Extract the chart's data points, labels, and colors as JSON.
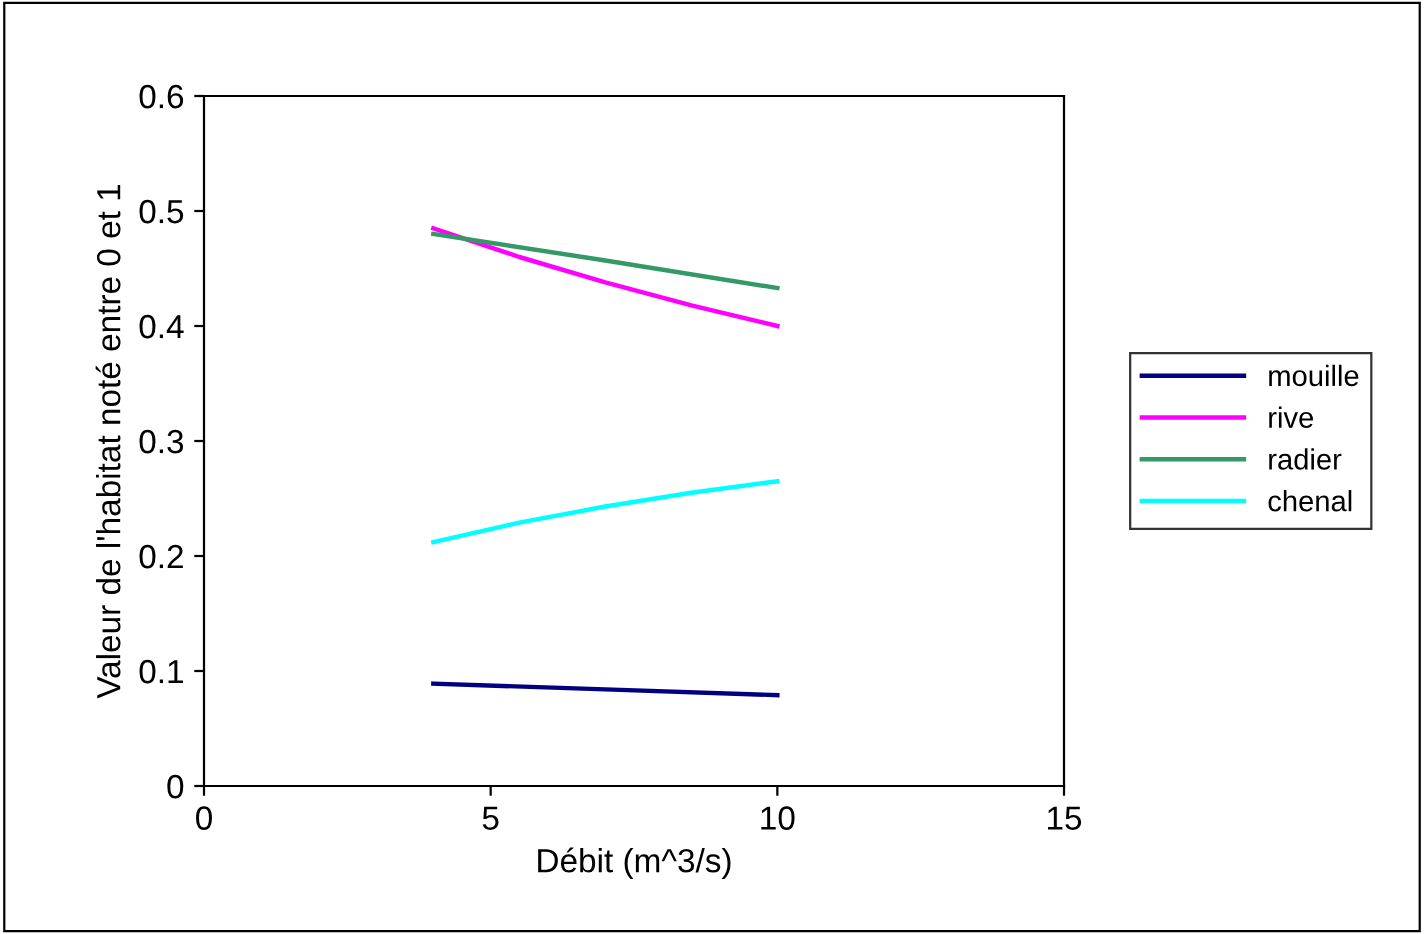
{
  "chart_data": {
    "type": "line",
    "xlabel": "Débit (m^3/s)",
    "ylabel": "Valeur de l'habitat noté entre 0 et 1",
    "xlim": [
      0,
      15
    ],
    "xticks": [
      0,
      5,
      10,
      15
    ],
    "ylim": [
      0,
      0.6
    ],
    "yticks": [
      0,
      0.1,
      0.2,
      0.3,
      0.4,
      0.5,
      0.6
    ],
    "grid": false,
    "legend": "right",
    "marker": "none",
    "line_style": "solid",
    "series": [
      {
        "name": "mouille",
        "color": "#000080",
        "x": [
          4,
          7,
          10
        ],
        "values": [
          0.089,
          0.084,
          0.079
        ]
      },
      {
        "name": "rive",
        "color": "#ff00ff",
        "x": [
          4,
          5.5,
          7,
          8.5,
          10
        ],
        "values": [
          0.485,
          0.46,
          0.438,
          0.418,
          0.4
        ]
      },
      {
        "name": "radier",
        "color": "#339966",
        "x": [
          4,
          7,
          10
        ],
        "values": [
          0.48,
          0.457,
          0.433
        ]
      },
      {
        "name": "chenal",
        "color": "#00ffff",
        "x": [
          4,
          5.5,
          7,
          8.5,
          10
        ],
        "values": [
          0.212,
          0.229,
          0.243,
          0.255,
          0.265
        ]
      }
    ]
  }
}
